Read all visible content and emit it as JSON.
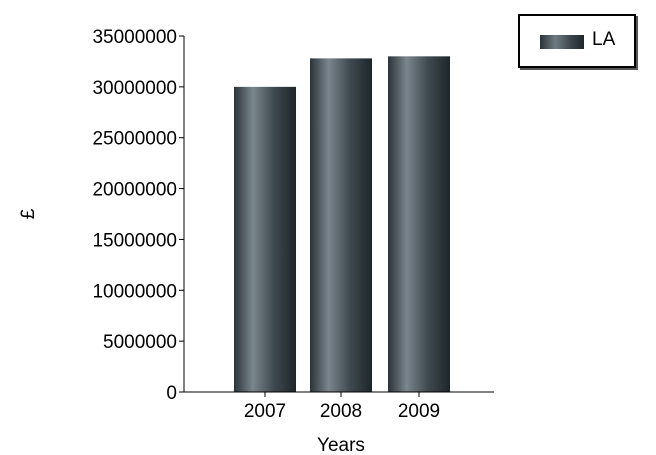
{
  "chart_data": {
    "type": "bar",
    "categories": [
      "2007",
      "2008",
      "2009"
    ],
    "series": [
      {
        "name": "LA",
        "values": [
          30000000,
          32800000,
          33000000
        ],
        "color": "#3c474d"
      }
    ],
    "yticks": [
      "0",
      "5000000",
      "10000000",
      "15000000",
      "20000000",
      "25000000",
      "30000000",
      "35000000"
    ],
    "ylim": [
      0,
      35000000
    ],
    "xlabel": "Years",
    "ylabel": "£",
    "grid": false,
    "legend_position": "top-right"
  }
}
